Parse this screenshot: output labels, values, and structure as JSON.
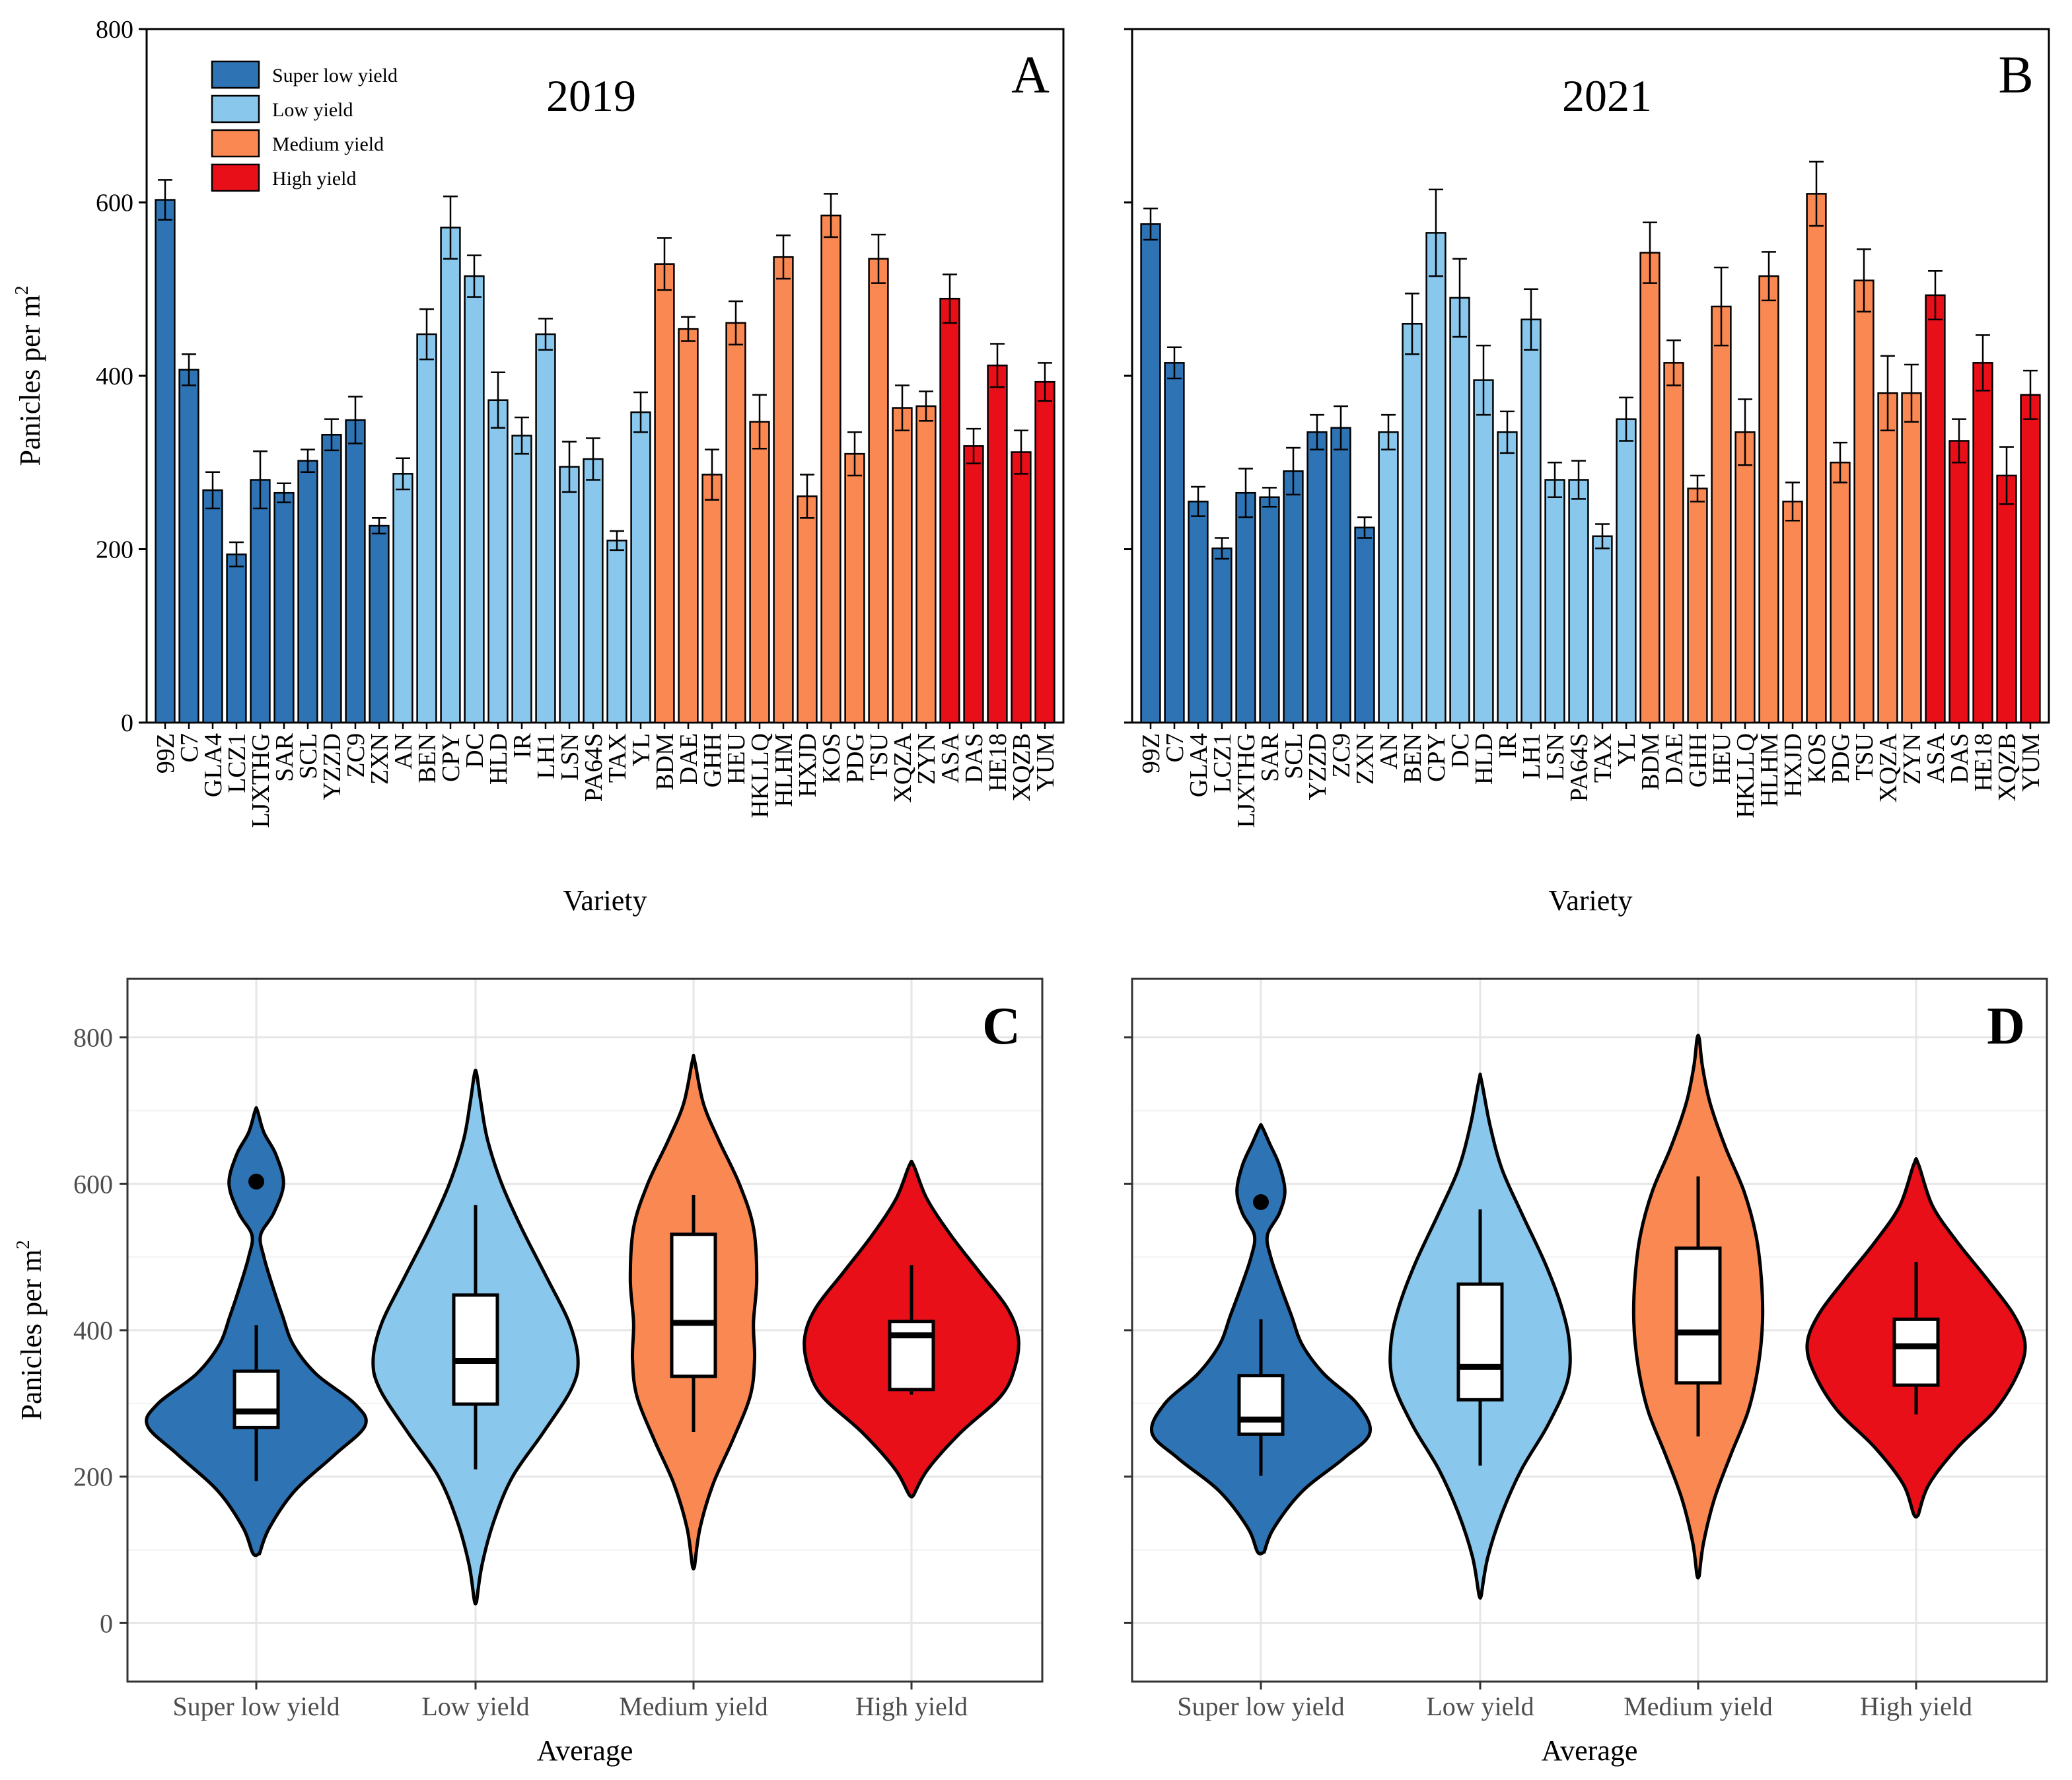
{
  "colors": {
    "super_low": "#2e74b5",
    "low": "#89c7ec",
    "medium": "#fa8852",
    "high": "#e80f19"
  },
  "legend": [
    "Super low yield",
    "Low yield",
    "Medium yield",
    "High yield"
  ],
  "chart_data": [
    {
      "type": "bar",
      "panel": "A",
      "title": "2019",
      "xlabel": "Variety",
      "ylabel": "Panicles per m",
      "ylabel_superscript": "2",
      "ylim": [
        0,
        800
      ],
      "yticks": [
        0,
        200,
        400,
        600,
        800
      ],
      "categories": [
        "99Z",
        "C7",
        "GLA4",
        "LCZ1",
        "LJXTHG",
        "SAR",
        "SCL",
        "YZZD",
        "ZC9",
        "ZXN",
        "AN",
        "BEN",
        "CPY",
        "DC",
        "HLD",
        "IR",
        "LH1",
        "LSN",
        "PA64S",
        "TAX",
        "YL",
        "BDM",
        "DAE",
        "GHH",
        "HEU",
        "HKLLQ",
        "HLHM",
        "HXJD",
        "KOS",
        "PDG",
        "TSU",
        "XQZA",
        "ZYN",
        "ASA",
        "DAS",
        "HE18",
        "XQZB",
        "YUM"
      ],
      "groups": [
        "super_low",
        "super_low",
        "super_low",
        "super_low",
        "super_low",
        "super_low",
        "super_low",
        "super_low",
        "super_low",
        "super_low",
        "low",
        "low",
        "low",
        "low",
        "low",
        "low",
        "low",
        "low",
        "low",
        "low",
        "low",
        "medium",
        "medium",
        "medium",
        "medium",
        "medium",
        "medium",
        "medium",
        "medium",
        "medium",
        "medium",
        "medium",
        "medium",
        "high",
        "high",
        "high",
        "high",
        "high"
      ],
      "values": [
        603,
        407,
        268,
        194,
        280,
        265,
        302,
        332,
        349,
        227,
        287,
        448,
        571,
        515,
        372,
        331,
        448,
        295,
        304,
        210,
        358,
        529,
        454,
        286,
        461,
        347,
        537,
        261,
        585,
        310,
        535,
        363,
        365,
        489,
        319,
        412,
        312,
        393
      ],
      "errors": [
        23,
        18,
        21,
        14,
        33,
        11,
        13,
        18,
        27,
        9,
        18,
        29,
        36,
        24,
        32,
        21,
        18,
        29,
        24,
        11,
        23,
        30,
        14,
        29,
        25,
        31,
        25,
        25,
        25,
        25,
        28,
        26,
        17,
        28,
        20,
        25,
        25,
        22
      ]
    },
    {
      "type": "bar",
      "panel": "B",
      "title": "2021",
      "xlabel": "Variety",
      "ylim": [
        0,
        800
      ],
      "categories": [
        "99Z",
        "C7",
        "GLA4",
        "LCZ1",
        "LJXTHG",
        "SAR",
        "SCL",
        "YZZD",
        "ZC9",
        "ZXN",
        "AN",
        "BEN",
        "CPY",
        "DC",
        "HLD",
        "IR",
        "LH1",
        "LSN",
        "PA64S",
        "TAX",
        "YL",
        "BDM",
        "DAE",
        "GHH",
        "HEU",
        "HKLLQ",
        "HLHM",
        "HXJD",
        "KOS",
        "PDG",
        "TSU",
        "XQZA",
        "ZYN",
        "ASA",
        "DAS",
        "HE18",
        "XQZB",
        "YUM"
      ],
      "groups": [
        "super_low",
        "super_low",
        "super_low",
        "super_low",
        "super_low",
        "super_low",
        "super_low",
        "super_low",
        "super_low",
        "super_low",
        "low",
        "low",
        "low",
        "low",
        "low",
        "low",
        "low",
        "low",
        "low",
        "low",
        "low",
        "medium",
        "medium",
        "medium",
        "medium",
        "medium",
        "medium",
        "medium",
        "medium",
        "medium",
        "medium",
        "medium",
        "medium",
        "high",
        "high",
        "high",
        "high",
        "high"
      ],
      "values": [
        575,
        415,
        255,
        201,
        265,
        260,
        290,
        335,
        340,
        225,
        335,
        460,
        565,
        490,
        395,
        335,
        465,
        280,
        280,
        215,
        350,
        542,
        415,
        270,
        480,
        335,
        515,
        255,
        610,
        300,
        510,
        380,
        380,
        493,
        325,
        415,
        285,
        378
      ],
      "errors": [
        18,
        18,
        17,
        12,
        28,
        11,
        27,
        20,
        25,
        12,
        20,
        35,
        50,
        45,
        40,
        24,
        35,
        20,
        22,
        14,
        25,
        35,
        26,
        15,
        45,
        38,
        28,
        22,
        37,
        23,
        36,
        43,
        33,
        28,
        25,
        32,
        33,
        28
      ]
    },
    {
      "type": "violin",
      "panel": "C",
      "xlabel": "Average",
      "ylabel": "Panicles per m",
      "ylabel_superscript": "2",
      "ylim": [
        -80,
        880
      ],
      "yticks": [
        0,
        200,
        400,
        600,
        800
      ],
      "categories": [
        "Super low yield",
        "Low yield",
        "Medium yield",
        "High yield"
      ],
      "series": [
        {
          "name": "Super low yield",
          "min": 194,
          "q1": 267,
          "median": 289,
          "q3": 344,
          "max": 407,
          "outliers": [
            603
          ],
          "range": [
            95,
            700
          ],
          "density": [
            [
              95,
              0.03
            ],
            [
              130,
              0.12
            ],
            [
              180,
              0.35
            ],
            [
              230,
              0.72
            ],
            [
              270,
              1.0
            ],
            [
              300,
              0.9
            ],
            [
              340,
              0.55
            ],
            [
              380,
              0.34
            ],
            [
              420,
              0.24
            ],
            [
              460,
              0.15
            ],
            [
              500,
              0.07
            ],
            [
              530,
              0.04
            ],
            [
              560,
              0.16
            ],
            [
              600,
              0.25
            ],
            [
              640,
              0.18
            ],
            [
              670,
              0.07
            ],
            [
              700,
              0.01
            ]
          ]
        },
        {
          "name": "Low yield",
          "min": 210,
          "q1": 299,
          "median": 358,
          "q3": 448,
          "max": 571,
          "outliers": [],
          "range": [
            30,
            750
          ],
          "density": [
            [
              30,
              0.01
            ],
            [
              80,
              0.06
            ],
            [
              140,
              0.17
            ],
            [
              200,
              0.34
            ],
            [
              260,
              0.62
            ],
            [
              320,
              0.88
            ],
            [
              360,
              0.94
            ],
            [
              410,
              0.86
            ],
            [
              470,
              0.66
            ],
            [
              540,
              0.42
            ],
            [
              600,
              0.24
            ],
            [
              660,
              0.11
            ],
            [
              710,
              0.05
            ],
            [
              750,
              0.01
            ]
          ]
        },
        {
          "name": "Medium yield",
          "min": 261,
          "q1": 337,
          "median": 410,
          "q3": 531,
          "max": 585,
          "outliers": [],
          "range": [
            78,
            768
          ],
          "density": [
            [
              78,
              0.01
            ],
            [
              130,
              0.06
            ],
            [
              190,
              0.18
            ],
            [
              250,
              0.36
            ],
            [
              310,
              0.52
            ],
            [
              360,
              0.56
            ],
            [
              410,
              0.55
            ],
            [
              470,
              0.58
            ],
            [
              540,
              0.55
            ],
            [
              600,
              0.42
            ],
            [
              660,
              0.23
            ],
            [
              710,
              0.09
            ],
            [
              768,
              0.01
            ]
          ]
        },
        {
          "name": "High yield",
          "min": 312,
          "q1": 319,
          "median": 393,
          "q3": 412,
          "max": 489,
          "outliers": [],
          "range": [
            175,
            625
          ],
          "density": [
            [
              175,
              0.02
            ],
            [
              210,
              0.15
            ],
            [
              260,
              0.45
            ],
            [
              310,
              0.82
            ],
            [
              350,
              0.95
            ],
            [
              390,
              0.98
            ],
            [
              430,
              0.88
            ],
            [
              480,
              0.62
            ],
            [
              530,
              0.36
            ],
            [
              580,
              0.14
            ],
            [
              625,
              0.02
            ]
          ]
        }
      ]
    },
    {
      "type": "violin",
      "panel": "D",
      "xlabel": "Average",
      "ylim": [
        -80,
        880
      ],
      "yticks": [
        0,
        200,
        400,
        600,
        800
      ],
      "categories": [
        "Super low yield",
        "Low yield",
        "Medium yield",
        "High yield"
      ],
      "series": [
        {
          "name": "Super low yield",
          "min": 201,
          "q1": 258,
          "median": 278,
          "q3": 338,
          "max": 415,
          "outliers": [
            575
          ],
          "range": [
            97,
            678
          ],
          "density": [
            [
              97,
              0.03
            ],
            [
              130,
              0.12
            ],
            [
              180,
              0.38
            ],
            [
              225,
              0.76
            ],
            [
              260,
              1.0
            ],
            [
              300,
              0.88
            ],
            [
              340,
              0.58
            ],
            [
              380,
              0.38
            ],
            [
              420,
              0.28
            ],
            [
              460,
              0.18
            ],
            [
              500,
              0.09
            ],
            [
              530,
              0.06
            ],
            [
              560,
              0.17
            ],
            [
              590,
              0.22
            ],
            [
              625,
              0.17
            ],
            [
              655,
              0.08
            ],
            [
              678,
              0.01
            ]
          ]
        },
        {
          "name": "Low yield",
          "min": 215,
          "q1": 305,
          "median": 350,
          "q3": 463,
          "max": 565,
          "outliers": [],
          "range": [
            38,
            742
          ],
          "density": [
            [
              38,
              0.01
            ],
            [
              90,
              0.07
            ],
            [
              150,
              0.2
            ],
            [
              210,
              0.38
            ],
            [
              270,
              0.62
            ],
            [
              330,
              0.8
            ],
            [
              380,
              0.82
            ],
            [
              430,
              0.75
            ],
            [
              490,
              0.6
            ],
            [
              560,
              0.38
            ],
            [
              620,
              0.2
            ],
            [
              680,
              0.09
            ],
            [
              742,
              0.01
            ]
          ]
        },
        {
          "name": "Medium yield",
          "min": 255,
          "q1": 328,
          "median": 397,
          "q3": 512,
          "max": 610,
          "outliers": [],
          "range": [
            65,
            798
          ],
          "density": [
            [
              65,
              0.01
            ],
            [
              110,
              0.05
            ],
            [
              170,
              0.15
            ],
            [
              230,
              0.3
            ],
            [
              290,
              0.46
            ],
            [
              350,
              0.55
            ],
            [
              410,
              0.59
            ],
            [
              470,
              0.58
            ],
            [
              530,
              0.53
            ],
            [
              590,
              0.42
            ],
            [
              650,
              0.25
            ],
            [
              710,
              0.11
            ],
            [
              760,
              0.04
            ],
            [
              798,
              0.01
            ]
          ]
        },
        {
          "name": "High yield",
          "min": 285,
          "q1": 325,
          "median": 378,
          "q3": 415,
          "max": 493,
          "outliers": [],
          "range": [
            148,
            627
          ],
          "density": [
            [
              148,
              0.02
            ],
            [
              190,
              0.12
            ],
            [
              240,
              0.38
            ],
            [
              290,
              0.72
            ],
            [
              340,
              0.93
            ],
            [
              380,
              1.0
            ],
            [
              420,
              0.9
            ],
            [
              470,
              0.65
            ],
            [
              520,
              0.38
            ],
            [
              570,
              0.15
            ],
            [
              627,
              0.02
            ]
          ]
        }
      ]
    }
  ]
}
